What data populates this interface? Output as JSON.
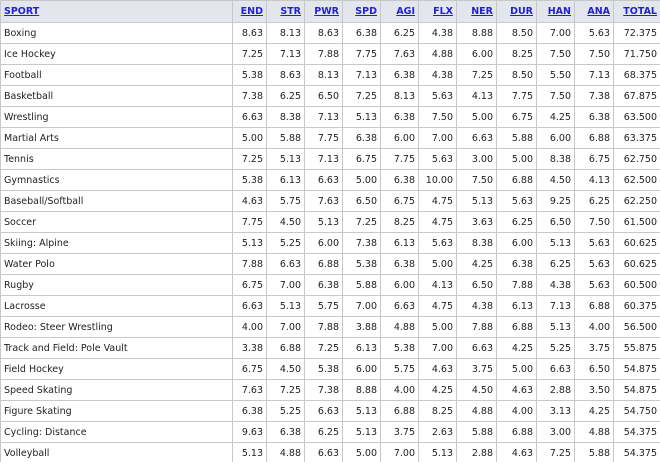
{
  "table": {
    "header": [
      "SPORT",
      "END",
      "STR",
      "PWR",
      "SPD",
      "AGI",
      "FLX",
      "NER",
      "DUR",
      "HAN",
      "ANA",
      "TOTAL"
    ],
    "rows": [
      [
        "Boxing",
        "8.63",
        "8.13",
        "8.63",
        "6.38",
        "6.25",
        "4.38",
        "8.88",
        "8.50",
        "7.00",
        "5.63",
        "72.375"
      ],
      [
        "Ice Hockey",
        "7.25",
        "7.13",
        "7.88",
        "7.75",
        "7.63",
        "4.88",
        "6.00",
        "8.25",
        "7.50",
        "7.50",
        "71.750"
      ],
      [
        "Football",
        "5.38",
        "8.63",
        "8.13",
        "7.13",
        "6.38",
        "4.38",
        "7.25",
        "8.50",
        "5.50",
        "7.13",
        "68.375"
      ],
      [
        "Basketball",
        "7.38",
        "6.25",
        "6.50",
        "7.25",
        "8.13",
        "5.63",
        "4.13",
        "7.75",
        "7.50",
        "7.38",
        "67.875"
      ],
      [
        "Wrestling",
        "6.63",
        "8.38",
        "7.13",
        "5.13",
        "6.38",
        "7.50",
        "5.00",
        "6.75",
        "4.25",
        "6.38",
        "63.500"
      ],
      [
        "Martial Arts",
        "5.00",
        "5.88",
        "7.75",
        "6.38",
        "6.00",
        "7.00",
        "6.63",
        "5.88",
        "6.00",
        "6.88",
        "63.375"
      ],
      [
        "Tennis",
        "7.25",
        "5.13",
        "7.13",
        "6.75",
        "7.75",
        "5.63",
        "3.00",
        "5.00",
        "8.38",
        "6.75",
        "62.750"
      ],
      [
        "Gymnastics",
        "5.38",
        "6.13",
        "6.63",
        "5.00",
        "6.38",
        "10.00",
        "7.50",
        "6.88",
        "4.50",
        "4.13",
        "62.500"
      ],
      [
        "Baseball/Softball",
        "4.63",
        "5.75",
        "7.63",
        "6.50",
        "6.75",
        "4.75",
        "5.13",
        "5.63",
        "9.25",
        "6.25",
        "62.250"
      ],
      [
        "Soccer",
        "7.75",
        "4.50",
        "5.13",
        "7.25",
        "8.25",
        "4.75",
        "3.63",
        "6.25",
        "6.50",
        "7.50",
        "61.500"
      ],
      [
        "Skiing: Alpine",
        "5.13",
        "5.25",
        "6.00",
        "7.38",
        "6.13",
        "5.63",
        "8.38",
        "6.00",
        "5.13",
        "5.63",
        "60.625"
      ],
      [
        "Water Polo",
        "7.88",
        "6.63",
        "6.88",
        "5.38",
        "6.38",
        "5.00",
        "4.25",
        "6.38",
        "6.25",
        "5.63",
        "60.625"
      ],
      [
        "Rugby",
        "6.75",
        "7.00",
        "6.38",
        "5.88",
        "6.00",
        "4.13",
        "6.50",
        "7.88",
        "4.38",
        "5.63",
        "60.500"
      ],
      [
        "Lacrosse",
        "6.63",
        "5.13",
        "5.75",
        "7.00",
        "6.63",
        "4.75",
        "4.38",
        "6.13",
        "7.13",
        "6.88",
        "60.375"
      ],
      [
        "Rodeo: Steer Wrestling",
        "4.00",
        "7.00",
        "7.88",
        "3.88",
        "4.88",
        "5.00",
        "7.88",
        "6.88",
        "5.13",
        "4.00",
        "56.500"
      ],
      [
        "Track and Field: Pole Vault",
        "3.38",
        "6.88",
        "7.25",
        "6.13",
        "5.38",
        "7.00",
        "6.63",
        "4.25",
        "5.25",
        "3.75",
        "55.875"
      ],
      [
        "Field Hockey",
        "6.75",
        "4.50",
        "5.38",
        "6.00",
        "5.75",
        "4.63",
        "3.75",
        "5.00",
        "6.63",
        "6.50",
        "54.875"
      ],
      [
        "Speed Skating",
        "7.63",
        "7.25",
        "7.38",
        "8.88",
        "4.00",
        "4.25",
        "4.50",
        "4.63",
        "2.88",
        "3.50",
        "54.875"
      ],
      [
        "Figure Skating",
        "6.38",
        "5.25",
        "6.63",
        "5.13",
        "6.88",
        "8.25",
        "4.88",
        "4.00",
        "3.13",
        "4.25",
        "54.750"
      ],
      [
        "Cycling: Distance",
        "9.63",
        "6.38",
        "6.25",
        "5.13",
        "3.75",
        "2.63",
        "5.88",
        "6.88",
        "3.00",
        "4.88",
        "54.375"
      ],
      [
        "Volleyball",
        "5.13",
        "4.88",
        "6.63",
        "5.00",
        "7.00",
        "5.13",
        "2.88",
        "4.63",
        "7.25",
        "5.88",
        "54.375"
      ]
    ]
  }
}
